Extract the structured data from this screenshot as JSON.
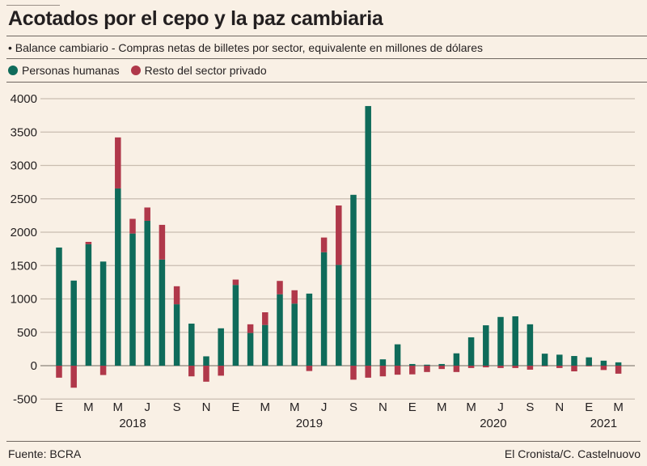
{
  "header": {
    "title": "Acotados por el cepo y la paz cambiaria",
    "subtitle": "• Balance cambiario - Compras netas de billetes por sector, equivalente en millones de dólares"
  },
  "legend": [
    {
      "label": "Personas humanas",
      "color": "#0f6b5a"
    },
    {
      "label": "Resto del sector privado",
      "color": "#b0384a"
    }
  ],
  "footer": {
    "source": "Fuente: BCRA",
    "credit": "El Cronista/C. Castelnuovo"
  },
  "chart_data": {
    "type": "bar",
    "stacked": true,
    "title": "Acotados por el cepo y la paz cambiaria",
    "xlabel": "",
    "ylabel": "Millones de dólares",
    "ylim": [
      -500,
      4000
    ],
    "yticks": [
      4000,
      3500,
      3000,
      2500,
      2000,
      1500,
      1000,
      500,
      0,
      -500
    ],
    "grid": true,
    "legend_position": "top-left",
    "categories": [
      "2018-01",
      "2018-02",
      "2018-03",
      "2018-04",
      "2018-05",
      "2018-06",
      "2018-07",
      "2018-08",
      "2018-09",
      "2018-10",
      "2018-11",
      "2018-12",
      "2019-01",
      "2019-02",
      "2019-03",
      "2019-04",
      "2019-05",
      "2019-06",
      "2019-07",
      "2019-08",
      "2019-09",
      "2019-10",
      "2019-11",
      "2019-12",
      "2020-01",
      "2020-02",
      "2020-03",
      "2020-04",
      "2020-05",
      "2020-06",
      "2020-07",
      "2020-08",
      "2020-09",
      "2020-10",
      "2020-11",
      "2020-12",
      "2021-01",
      "2021-02",
      "2021-03"
    ],
    "xtick_labels": [
      {
        "index": 0,
        "label": "E"
      },
      {
        "index": 2,
        "label": "M"
      },
      {
        "index": 4,
        "label": "M"
      },
      {
        "index": 6,
        "label": "J"
      },
      {
        "index": 8,
        "label": "S"
      },
      {
        "index": 10,
        "label": "N"
      },
      {
        "index": 12,
        "label": "E"
      },
      {
        "index": 14,
        "label": "M"
      },
      {
        "index": 16,
        "label": "M"
      },
      {
        "index": 18,
        "label": "J"
      },
      {
        "index": 20,
        "label": "S"
      },
      {
        "index": 22,
        "label": "N"
      },
      {
        "index": 24,
        "label": "E"
      },
      {
        "index": 26,
        "label": "M"
      },
      {
        "index": 28,
        "label": "M"
      },
      {
        "index": 30,
        "label": "J"
      },
      {
        "index": 32,
        "label": "S"
      },
      {
        "index": 34,
        "label": "N"
      },
      {
        "index": 36,
        "label": "E"
      },
      {
        "index": 38,
        "label": "M"
      }
    ],
    "year_labels": [
      {
        "index": 5,
        "label": "2018"
      },
      {
        "index": 17,
        "label": "2019"
      },
      {
        "index": 29.5,
        "label": "2020"
      },
      {
        "index": 37,
        "label": "2021"
      }
    ],
    "series": [
      {
        "name": "Personas humanas",
        "color": "#0f6b5a",
        "values": [
          1770,
          1275,
          1820,
          1560,
          2655,
          1980,
          2170,
          1590,
          920,
          630,
          140,
          560,
          1210,
          490,
          610,
          1070,
          930,
          1080,
          1700,
          1510,
          2560,
          3890,
          95,
          320,
          25,
          15,
          25,
          185,
          425,
          605,
          730,
          740,
          620,
          180,
          165,
          145,
          125,
          75,
          50
        ]
      },
      {
        "name": "Resto del sector privado",
        "color": "#b0384a",
        "values": [
          -180,
          -330,
          35,
          -140,
          765,
          220,
          200,
          520,
          270,
          -160,
          -240,
          -150,
          80,
          130,
          190,
          200,
          200,
          -80,
          220,
          890,
          -210,
          -180,
          -160,
          -135,
          -130,
          -95,
          -50,
          -95,
          -35,
          -25,
          -35,
          -35,
          -60,
          -10,
          -35,
          -85,
          -10,
          -65,
          -120
        ]
      }
    ]
  }
}
